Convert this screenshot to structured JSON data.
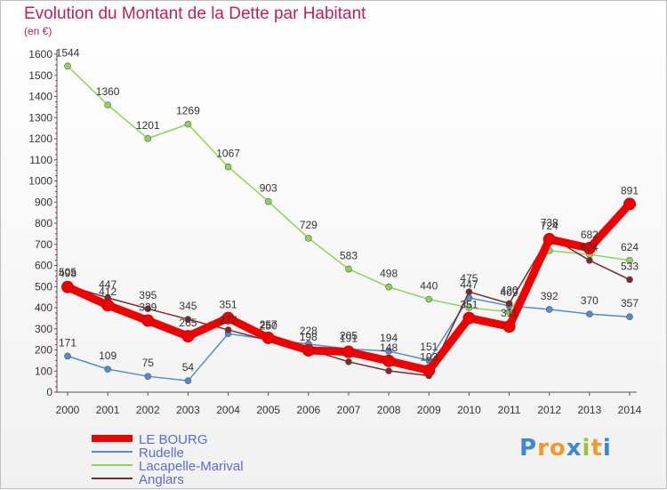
{
  "header": {
    "title": "Evolution du Montant de la Dette par Habitant",
    "unit": "(en €)"
  },
  "brand": {
    "letters": [
      "P",
      "r",
      "o",
      "x",
      "i",
      "t",
      "i"
    ],
    "colors": [
      "#3d86d8",
      "#f19a28",
      "#f19a28",
      "#3d86d8",
      "#9bc43b",
      "#f19a28",
      "#3d86d8"
    ]
  },
  "chart_data": {
    "type": "line",
    "title": "Evolution du Montant de la Dette par Habitant",
    "ylabel": "(en €)",
    "xlabel": "",
    "x": [
      "2000",
      "2001",
      "2002",
      "2003",
      "2004",
      "2005",
      "2006",
      "2007",
      "2008",
      "2009",
      "2010",
      "2011",
      "2012",
      "2013",
      "2014"
    ],
    "ylim": [
      0,
      1600
    ],
    "yticks": [
      0,
      100,
      200,
      300,
      400,
      500,
      600,
      700,
      800,
      900,
      1000,
      1100,
      1200,
      1300,
      1400,
      1500,
      1600
    ],
    "grid": false,
    "legend_position": "bottom-left",
    "series": [
      {
        "name": "LE BOURG",
        "color": "#ee0000",
        "values": [
          498,
          412,
          339,
          265,
          351,
          257,
          198,
          191,
          148,
          103,
          351,
          311,
          724,
          682,
          891
        ],
        "labels": [
          "498",
          "412",
          "339",
          "265",
          "351",
          "257",
          "198",
          "191",
          "148",
          "103",
          "351",
          "311",
          "724",
          "682",
          "891"
        ]
      },
      {
        "name": "Rudelle",
        "color": "#4f8fcf",
        "values": [
          171,
          109,
          75,
          54,
          277,
          250,
          228,
          205,
          194,
          151,
          447,
          409,
          392,
          370,
          357
        ],
        "labels": [
          "171",
          "109",
          "75",
          "54",
          "277",
          "250",
          "228",
          "205",
          "194",
          "151",
          "447",
          "409",
          "392",
          "370",
          "357"
        ]
      },
      {
        "name": "Lacapelle-Marival",
        "color": "#8fd45a",
        "values": [
          1544,
          1360,
          1201,
          1269,
          1067,
          903,
          729,
          583,
          498,
          440,
          400,
          380,
          670,
          652,
          624
        ],
        "labels": [
          "1544",
          "1360",
          "1201",
          "1269",
          "1067",
          "903",
          "729",
          "583",
          "498",
          "440",
          "",
          "",
          "",
          "",
          "624"
        ]
      },
      {
        "name": "Anglars",
        "color": "#7a2a2a",
        "values": [
          505,
          447,
          395,
          345,
          295,
          245,
          202,
          144,
          101,
          78,
          475,
          420,
          738,
          624,
          533
        ],
        "labels": [
          "505",
          "447",
          "395",
          "345",
          "",
          "",
          "",
          "",
          "",
          "",
          "475",
          "420",
          "738",
          "624",
          "533"
        ]
      }
    ]
  }
}
